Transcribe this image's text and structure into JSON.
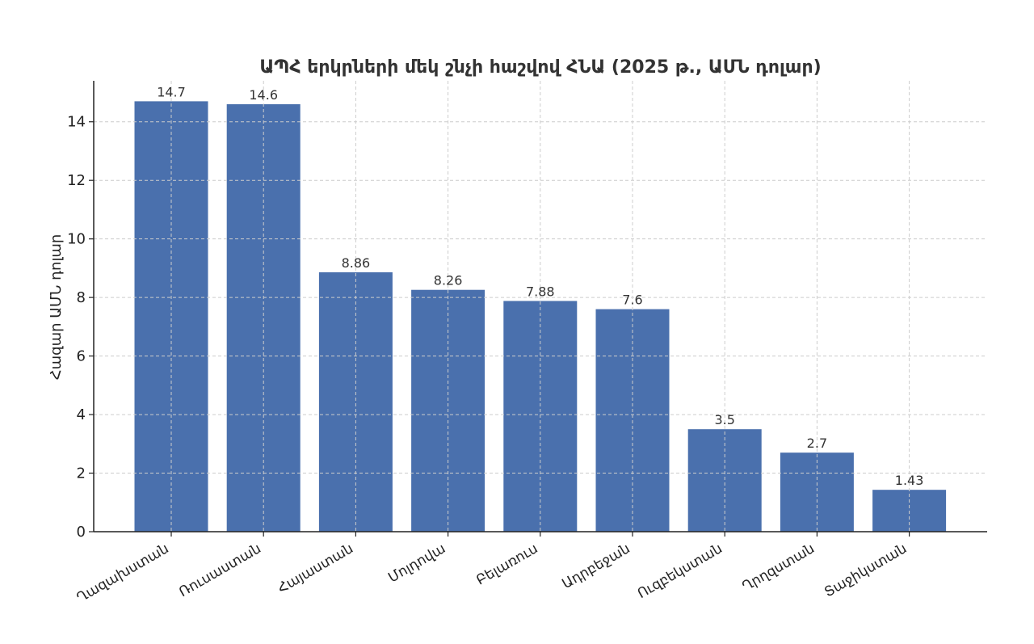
{
  "chart_data": {
    "type": "bar",
    "title": "ԱՊՀ երկրների մեկ շնչի հաշվով ՀՆԱ (2025 թ., ԱՄՆ դոլար)",
    "xlabel": "",
    "ylabel": "Հազար ԱՄՆ դոլար",
    "categories": [
      "Ղազախստան",
      "Ռուսաստան",
      "Հայաստան",
      "Մոլդովա",
      "Բելառուս",
      "Ադրբեջան",
      "Ուզբեկստան",
      "Ղրղզստան",
      "Տաջիկստան"
    ],
    "values": [
      14.7,
      14.6,
      8.86,
      8.26,
      7.88,
      7.6,
      3.5,
      2.7,
      1.43
    ],
    "data_labels": [
      "14.7",
      "14.6",
      "8.86",
      "8.26",
      "7.88",
      "7.6",
      "3.5",
      "2.7",
      "1.43"
    ],
    "ylim": [
      0,
      15.4
    ],
    "yticks": [
      0,
      2,
      4,
      6,
      8,
      10,
      12,
      14
    ],
    "grid": true,
    "legend": "none",
    "colors": {
      "bar": "#4a70ad",
      "grid": "#cccccc",
      "axis": "#222222",
      "title": "#333333"
    }
  }
}
